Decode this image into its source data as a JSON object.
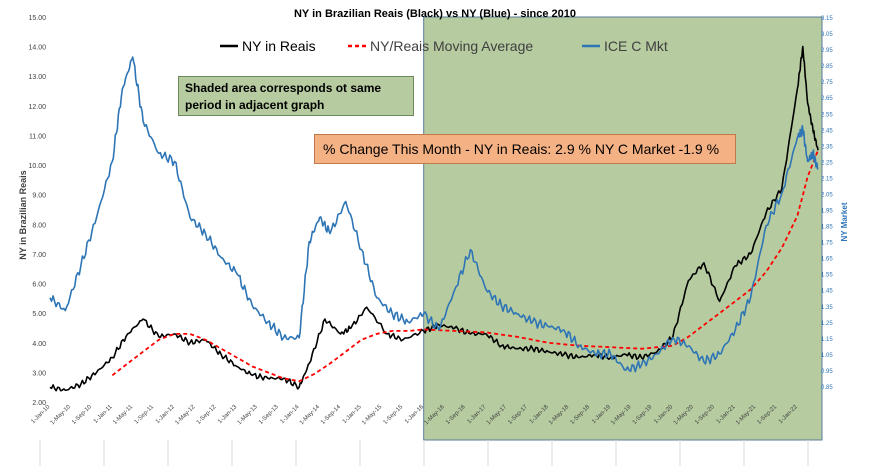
{
  "chart_data": {
    "type": "line",
    "title": "NY in Brazilian Reais (Black) vs NY (Blue) - since 2010",
    "ylabel": "NY in Brazilian Reais",
    "y2label": "NY Market",
    "ylim": [
      2.0,
      15.0
    ],
    "y2lim": [
      0.75,
      3.15
    ],
    "xlim": [
      "2010-01-01",
      "2022-05-01"
    ],
    "x_tick_labels": [
      "1-Jan-10",
      "1-May-10",
      "1-Sep-10",
      "1-Jan-11",
      "1-May-11",
      "1-Sep-11",
      "1-Jan-12",
      "1-May-12",
      "1-Sep-12",
      "1-Jan-13",
      "1-May-13",
      "1-Sep-13",
      "1-Jan-14",
      "1-May-14",
      "1-Sep-14",
      "1-Jan-15",
      "1-May-15",
      "1-Sep-15",
      "1-Jan-16",
      "1-May-16",
      "1-Sep-16",
      "1-Jan-17",
      "1-May-17",
      "1-Sep-17",
      "1-Jan-18",
      "1-May-18",
      "1-Sep-18",
      "1-Jan-19",
      "1-May-19",
      "1-Sep-19",
      "1-Jan-20",
      "1-May-20",
      "1-Sep-20",
      "1-Jan-21",
      "1-May-21",
      "1-Sep-21",
      "1-Jan-22"
    ],
    "y_tick_labels": [
      "2.00",
      "3.00",
      "4.00",
      "5.00",
      "6.00",
      "7.00",
      "8.00",
      "9.00",
      "10.00",
      "11.00",
      "12.00",
      "13.00",
      "14.00",
      "15.00"
    ],
    "y2_tick_labels": [
      "0.85",
      "0.95",
      "1.05",
      "1.15",
      "1.25",
      "1.35",
      "1.45",
      "1.55",
      "1.65",
      "1.75",
      "1.85",
      "1.95",
      "2.05",
      "2.15",
      "2.25",
      "2.35",
      "2.45",
      "2.55",
      "2.65",
      "2.75",
      "2.85",
      "2.95",
      "3.05",
      "3.15"
    ],
    "legend": [
      "NY in Reais",
      "NY/Reais Moving Average",
      "ICE C Mkt"
    ],
    "legend_position": "top",
    "shaded_region": {
      "from": "2016-01-01",
      "to": "2022-05-01",
      "color": "#b6cba0"
    },
    "series": [
      {
        "name": "NY in Reais",
        "axis": "left",
        "color": "#000000",
        "style": "solid",
        "x": [
          "2010-01-01",
          "2010-04-01",
          "2010-07-01",
          "2010-10-01",
          "2011-01-01",
          "2011-04-01",
          "2011-07-01",
          "2011-10-01",
          "2012-01-01",
          "2012-04-01",
          "2012-07-01",
          "2012-10-01",
          "2013-01-01",
          "2013-04-01",
          "2013-07-01",
          "2013-10-01",
          "2014-01-01",
          "2014-03-01",
          "2014-06-01",
          "2014-09-01",
          "2014-11-01",
          "2015-02-01",
          "2015-06-01",
          "2015-09-01",
          "2016-01-01",
          "2016-04-01",
          "2016-07-01",
          "2016-10-01",
          "2017-01-01",
          "2017-04-01",
          "2017-07-01",
          "2017-10-01",
          "2018-01-01",
          "2018-04-01",
          "2018-07-01",
          "2018-10-01",
          "2019-01-01",
          "2019-04-01",
          "2019-07-01",
          "2019-10-01",
          "2020-01-01",
          "2020-04-01",
          "2020-07-01",
          "2020-10-01",
          "2021-01-01",
          "2021-04-01",
          "2021-07-01",
          "2021-10-01",
          "2022-01-01",
          "2022-02-01",
          "2022-03-01",
          "2022-04-01",
          "2022-05-01"
        ],
        "values": [
          2.5,
          2.4,
          2.6,
          3.0,
          3.5,
          4.3,
          4.8,
          4.2,
          4.3,
          4.0,
          4.1,
          3.6,
          3.2,
          2.9,
          2.8,
          2.8,
          2.5,
          3.3,
          4.8,
          4.3,
          4.5,
          5.2,
          4.3,
          4.1,
          4.4,
          4.6,
          4.5,
          4.3,
          4.3,
          3.9,
          3.8,
          3.8,
          3.7,
          3.6,
          3.5,
          3.6,
          3.5,
          3.6,
          3.5,
          3.7,
          4.2,
          6.1,
          6.7,
          5.4,
          6.6,
          7.0,
          8.4,
          9.2,
          12.6,
          14.0,
          12.1,
          11.2,
          10.5
        ]
      },
      {
        "name": "NY/Reais Moving Average",
        "axis": "left",
        "color": "#ff0000",
        "style": "dashed",
        "x": [
          "2011-01-01",
          "2011-04-01",
          "2011-07-01",
          "2011-10-01",
          "2012-01-01",
          "2012-04-01",
          "2012-07-01",
          "2012-10-01",
          "2013-01-01",
          "2013-04-01",
          "2013-07-01",
          "2013-10-01",
          "2014-01-01",
          "2014-04-01",
          "2014-07-01",
          "2014-10-01",
          "2015-01-01",
          "2015-04-01",
          "2015-07-01",
          "2015-10-01",
          "2016-01-01",
          "2016-07-01",
          "2017-01-01",
          "2017-07-01",
          "2018-01-01",
          "2018-07-01",
          "2019-01-01",
          "2019-07-01",
          "2020-01-01",
          "2020-04-01",
          "2020-07-01",
          "2020-10-01",
          "2021-01-01",
          "2021-04-01",
          "2021-07-01",
          "2021-10-01",
          "2022-01-01",
          "2022-03-01",
          "2022-05-01"
        ],
        "values": [
          2.9,
          3.3,
          3.7,
          4.1,
          4.3,
          4.3,
          4.1,
          3.8,
          3.5,
          3.2,
          3.0,
          2.8,
          2.7,
          2.95,
          3.3,
          3.7,
          4.1,
          4.3,
          4.4,
          4.4,
          4.45,
          4.4,
          4.35,
          4.2,
          4.0,
          3.9,
          3.85,
          3.8,
          3.9,
          4.2,
          4.6,
          5.0,
          5.4,
          5.8,
          6.4,
          7.2,
          8.3,
          9.6,
          10.5
        ]
      },
      {
        "name": "ICE C Mkt",
        "axis": "right",
        "color": "#2e75b6",
        "style": "solid",
        "x": [
          "2010-01-01",
          "2010-04-01",
          "2010-07-01",
          "2010-10-01",
          "2011-01-01",
          "2011-03-01",
          "2011-05-01",
          "2011-07-01",
          "2011-10-01",
          "2012-01-01",
          "2012-04-01",
          "2012-07-01",
          "2012-10-01",
          "2013-01-01",
          "2013-04-01",
          "2013-07-01",
          "2013-10-01",
          "2014-01-01",
          "2014-03-01",
          "2014-05-01",
          "2014-07-01",
          "2014-10-01",
          "2015-01-01",
          "2015-04-01",
          "2015-07-01",
          "2015-10-01",
          "2016-01-01",
          "2016-04-01",
          "2016-07-01",
          "2016-10-01",
          "2017-01-01",
          "2017-04-01",
          "2017-07-01",
          "2017-10-01",
          "2018-01-01",
          "2018-04-01",
          "2018-07-01",
          "2018-10-01",
          "2019-01-01",
          "2019-04-01",
          "2019-07-01",
          "2019-10-01",
          "2020-01-01",
          "2020-04-01",
          "2020-07-01",
          "2020-10-01",
          "2021-01-01",
          "2021-04-01",
          "2021-07-01",
          "2021-10-01",
          "2022-01-01",
          "2022-02-01",
          "2022-03-01",
          "2022-04-01",
          "2022-05-01"
        ],
        "values": [
          1.4,
          1.32,
          1.6,
          1.9,
          2.25,
          2.7,
          2.9,
          2.5,
          2.3,
          2.25,
          1.9,
          1.8,
          1.65,
          1.55,
          1.35,
          1.25,
          1.15,
          1.15,
          1.75,
          1.9,
          1.8,
          2.0,
          1.7,
          1.4,
          1.3,
          1.25,
          1.3,
          1.2,
          1.45,
          1.7,
          1.45,
          1.35,
          1.3,
          1.25,
          1.22,
          1.2,
          1.1,
          1.05,
          1.05,
          0.95,
          0.98,
          1.05,
          1.15,
          1.1,
          1.0,
          1.05,
          1.2,
          1.4,
          1.85,
          2.05,
          2.4,
          2.45,
          2.25,
          2.3,
          2.2
        ]
      }
    ]
  },
  "annotations": {
    "shaded_note": "Shaded area corresponds ot same period in adjacent graph",
    "change_note": "% Change This Month -  NY in Reais:  2.9 % NY C Market -1.9 %"
  },
  "colors": {
    "shade": "#b6cba0",
    "shade_border": "#5a7d9a",
    "note_shaded_bg": "#b6cba0",
    "note_change_bg": "#f4b183",
    "axis_text": "#404040",
    "y2_text": "#2e75b6"
  }
}
